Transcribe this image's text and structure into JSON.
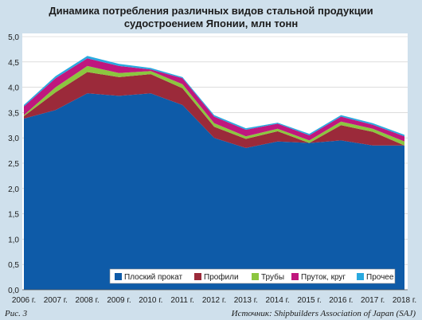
{
  "title_line1": "Динамика потребления различных видов стальной продукции",
  "title_line2": "судостроением Японии, млн тонн",
  "figure_label": "Рис. 3",
  "source": "Источник: Shipbuilders Association of Japan (SAJ)",
  "colors": {
    "flat": "#0e5ba8",
    "profiles": "#9b2a3a",
    "pipes": "#8cc63f",
    "bars": "#c0177e",
    "other": "#29a9df",
    "background": "#cfe0ec"
  },
  "chart_data": {
    "type": "area",
    "stacked": true,
    "x": [
      "2006 г.",
      "2007 г.",
      "2008 г.",
      "2009 г.",
      "2010 г.",
      "2011 г.",
      "2012 г.",
      "2013 г.",
      "2014 г.",
      "2015 г.",
      "2016 г.",
      "2017 г.",
      "2018 г."
    ],
    "series": [
      {
        "name": "Плоский прокат",
        "values": [
          3.38,
          3.55,
          3.88,
          3.83,
          3.88,
          3.65,
          3.0,
          2.8,
          2.93,
          2.9,
          2.95,
          2.85,
          2.85
        ]
      },
      {
        "name": "Профили",
        "values": [
          0.05,
          0.35,
          0.42,
          0.37,
          0.38,
          0.33,
          0.22,
          0.18,
          0.2,
          0.0,
          0.3,
          0.27,
          0.0
        ]
      },
      {
        "name": "Трубы",
        "values": [
          0.02,
          0.1,
          0.12,
          0.08,
          0.06,
          0.08,
          0.07,
          0.05,
          0.05,
          0.05,
          0.07,
          0.06,
          0.08
        ]
      },
      {
        "name": "Пруток, круг",
        "values": [
          0.17,
          0.18,
          0.15,
          0.14,
          0.03,
          0.12,
          0.13,
          0.13,
          0.1,
          0.1,
          0.1,
          0.08,
          0.1
        ]
      },
      {
        "name": "Прочее",
        "values": [
          0.03,
          0.04,
          0.05,
          0.04,
          0.03,
          0.02,
          0.03,
          0.03,
          0.02,
          0.03,
          0.03,
          0.03,
          0.03
        ]
      }
    ],
    "y_ticks": [
      "0,0",
      "0,5",
      "1,0",
      "1,5",
      "2,0",
      "2,5",
      "3,0",
      "3,5",
      "4,0",
      "4,5",
      "5,0"
    ],
    "ylim": [
      0,
      5
    ],
    "grid": true,
    "legend_position": "bottom-right"
  }
}
